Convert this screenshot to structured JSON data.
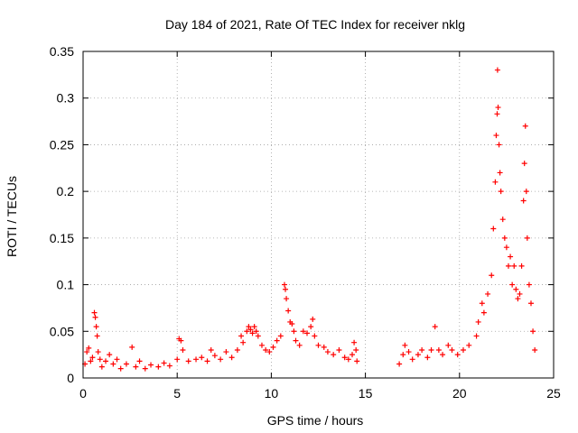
{
  "chart_data": {
    "type": "scatter",
    "title": "Day 184 of 2021, Rate Of TEC Index for receiver nklg",
    "xlabel": "GPS time / hours",
    "ylabel": "ROTI / TECUs",
    "xlim": [
      0,
      25
    ],
    "ylim": [
      0,
      0.35
    ],
    "xticks": [
      "0",
      "5",
      "10",
      "15",
      "20",
      "25"
    ],
    "yticks": [
      "0",
      "0.05",
      "0.1",
      "0.15",
      "0.2",
      "0.25",
      "0.3",
      "0.35"
    ],
    "grid": true,
    "marker": "+",
    "color": "#ff0000",
    "series": [
      {
        "name": "",
        "points": [
          [
            0.1,
            0.015
          ],
          [
            0.2,
            0.028
          ],
          [
            0.3,
            0.032
          ],
          [
            0.4,
            0.018
          ],
          [
            0.5,
            0.022
          ],
          [
            0.6,
            0.07
          ],
          [
            0.65,
            0.065
          ],
          [
            0.7,
            0.055
          ],
          [
            0.75,
            0.045
          ],
          [
            0.8,
            0.028
          ],
          [
            0.9,
            0.02
          ],
          [
            1.0,
            0.012
          ],
          [
            1.2,
            0.018
          ],
          [
            1.4,
            0.025
          ],
          [
            1.6,
            0.015
          ],
          [
            1.8,
            0.02
          ],
          [
            2.0,
            0.01
          ],
          [
            2.3,
            0.015
          ],
          [
            2.6,
            0.033
          ],
          [
            2.8,
            0.012
          ],
          [
            3.0,
            0.018
          ],
          [
            3.3,
            0.01
          ],
          [
            3.6,
            0.014
          ],
          [
            4.0,
            0.012
          ],
          [
            4.3,
            0.016
          ],
          [
            4.6,
            0.013
          ],
          [
            5.0,
            0.02
          ],
          [
            5.1,
            0.042
          ],
          [
            5.2,
            0.04
          ],
          [
            5.3,
            0.03
          ],
          [
            5.6,
            0.018
          ],
          [
            6.0,
            0.02
          ],
          [
            6.3,
            0.022
          ],
          [
            6.6,
            0.018
          ],
          [
            6.8,
            0.03
          ],
          [
            7.0,
            0.024
          ],
          [
            7.3,
            0.02
          ],
          [
            7.6,
            0.028
          ],
          [
            7.9,
            0.022
          ],
          [
            8.2,
            0.03
          ],
          [
            8.4,
            0.045
          ],
          [
            8.5,
            0.038
          ],
          [
            8.7,
            0.05
          ],
          [
            8.8,
            0.055
          ],
          [
            8.9,
            0.052
          ],
          [
            9.0,
            0.048
          ],
          [
            9.1,
            0.055
          ],
          [
            9.2,
            0.05
          ],
          [
            9.3,
            0.045
          ],
          [
            9.5,
            0.035
          ],
          [
            9.7,
            0.03
          ],
          [
            9.9,
            0.028
          ],
          [
            10.1,
            0.033
          ],
          [
            10.3,
            0.04
          ],
          [
            10.5,
            0.045
          ],
          [
            10.7,
            0.1
          ],
          [
            10.75,
            0.095
          ],
          [
            10.8,
            0.085
          ],
          [
            10.9,
            0.072
          ],
          [
            11.0,
            0.06
          ],
          [
            11.1,
            0.058
          ],
          [
            11.2,
            0.05
          ],
          [
            11.3,
            0.04
          ],
          [
            11.5,
            0.035
          ],
          [
            11.7,
            0.05
          ],
          [
            11.9,
            0.048
          ],
          [
            12.1,
            0.055
          ],
          [
            12.2,
            0.063
          ],
          [
            12.3,
            0.045
          ],
          [
            12.5,
            0.035
          ],
          [
            12.8,
            0.033
          ],
          [
            13.0,
            0.028
          ],
          [
            13.3,
            0.025
          ],
          [
            13.6,
            0.03
          ],
          [
            13.9,
            0.022
          ],
          [
            14.1,
            0.02
          ],
          [
            14.3,
            0.025
          ],
          [
            14.4,
            0.038
          ],
          [
            14.5,
            0.03
          ],
          [
            14.55,
            0.018
          ],
          [
            16.8,
            0.015
          ],
          [
            17.0,
            0.025
          ],
          [
            17.1,
            0.035
          ],
          [
            17.3,
            0.028
          ],
          [
            17.5,
            0.02
          ],
          [
            17.8,
            0.025
          ],
          [
            18.0,
            0.03
          ],
          [
            18.3,
            0.022
          ],
          [
            18.5,
            0.03
          ],
          [
            18.7,
            0.055
          ],
          [
            18.9,
            0.03
          ],
          [
            19.1,
            0.025
          ],
          [
            19.4,
            0.035
          ],
          [
            19.6,
            0.03
          ],
          [
            19.9,
            0.025
          ],
          [
            20.2,
            0.03
          ],
          [
            20.5,
            0.035
          ],
          [
            20.9,
            0.045
          ],
          [
            21.0,
            0.06
          ],
          [
            21.2,
            0.08
          ],
          [
            21.3,
            0.07
          ],
          [
            21.5,
            0.09
          ],
          [
            21.7,
            0.11
          ],
          [
            21.8,
            0.16
          ],
          [
            21.9,
            0.21
          ],
          [
            21.95,
            0.26
          ],
          [
            22.0,
            0.283
          ],
          [
            22.02,
            0.33
          ],
          [
            22.05,
            0.29
          ],
          [
            22.1,
            0.25
          ],
          [
            22.15,
            0.22
          ],
          [
            22.2,
            0.2
          ],
          [
            22.3,
            0.17
          ],
          [
            22.4,
            0.15
          ],
          [
            22.5,
            0.14
          ],
          [
            22.6,
            0.12
          ],
          [
            22.7,
            0.13
          ],
          [
            22.8,
            0.1
          ],
          [
            22.9,
            0.12
          ],
          [
            23.0,
            0.095
          ],
          [
            23.1,
            0.085
          ],
          [
            23.2,
            0.09
          ],
          [
            23.3,
            0.12
          ],
          [
            23.4,
            0.19
          ],
          [
            23.45,
            0.23
          ],
          [
            23.5,
            0.27
          ],
          [
            23.55,
            0.2
          ],
          [
            23.6,
            0.15
          ],
          [
            23.7,
            0.1
          ],
          [
            23.8,
            0.08
          ],
          [
            23.9,
            0.05
          ],
          [
            24.0,
            0.03
          ]
        ]
      }
    ]
  }
}
